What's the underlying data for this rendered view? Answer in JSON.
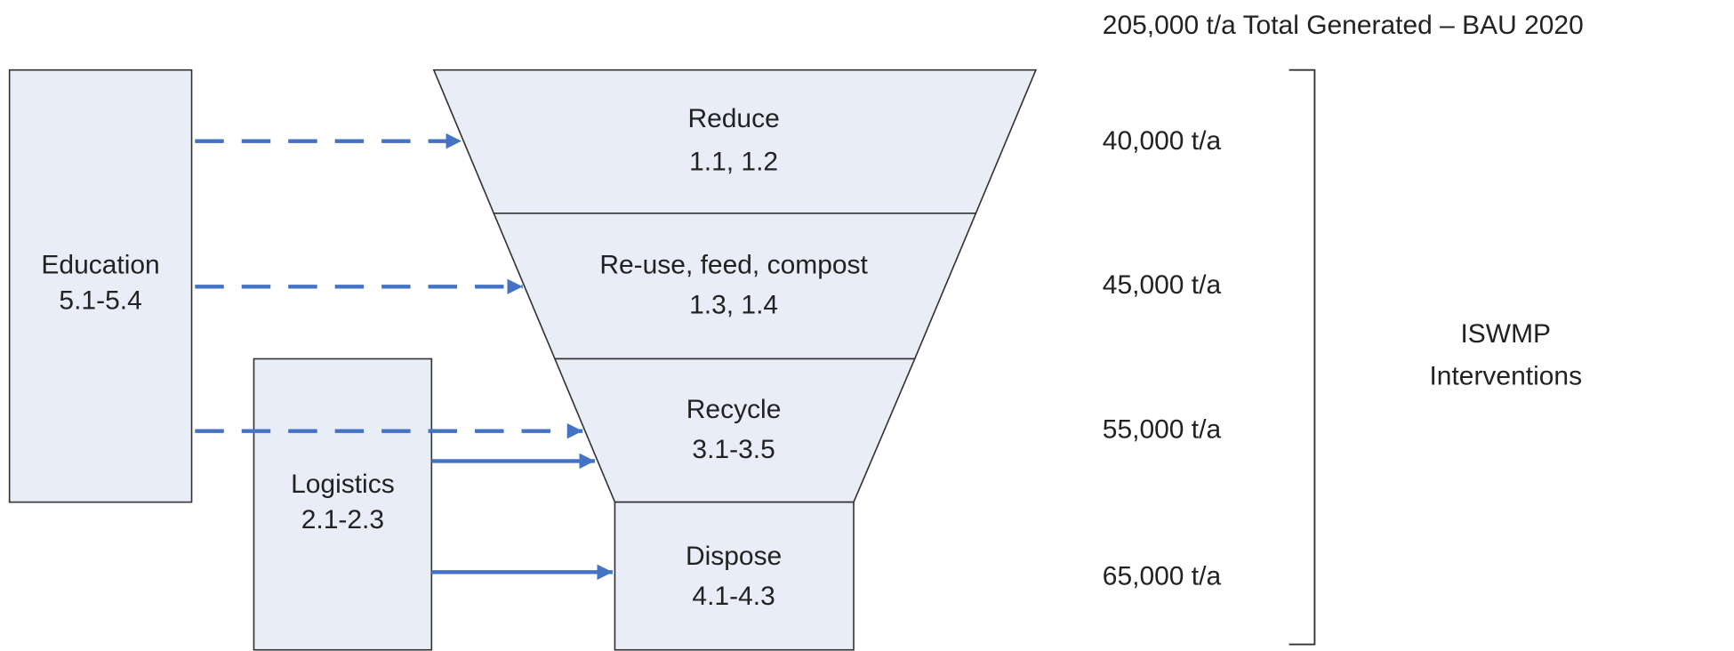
{
  "title": "205,000 t/a Total Generated – BAU 2020",
  "side_boxes": [
    {
      "label": "Education",
      "codes": "5.1-5.4"
    },
    {
      "label": "Logistics",
      "codes": "2.1-2.3"
    }
  ],
  "funnel": [
    {
      "label": "Reduce",
      "codes": "1.1, 1.2",
      "amount": "40,000 t/a"
    },
    {
      "label": "Re-use, feed, compost",
      "codes": "1.3, 1.4",
      "amount": "45,000 t/a"
    },
    {
      "label": "Recycle",
      "codes": "3.1-3.5",
      "amount": "55,000 t/a"
    },
    {
      "label": "Dispose",
      "codes": "4.1-4.3",
      "amount": "65,000 t/a"
    }
  ],
  "bracket_label": [
    "ISWMP",
    "Interventions"
  ]
}
